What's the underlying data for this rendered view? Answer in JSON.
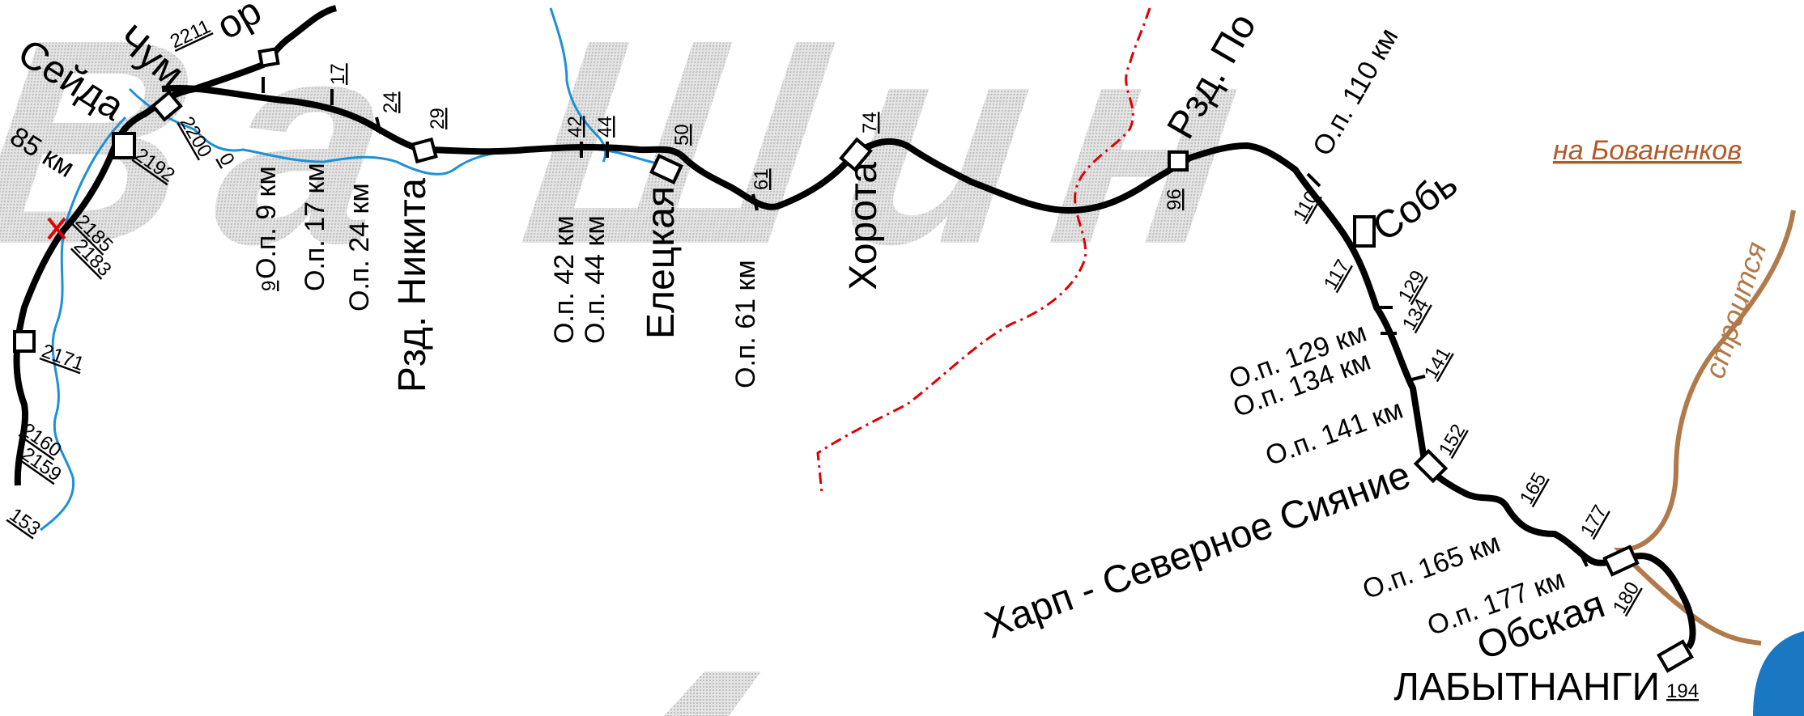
{
  "map": {
    "colors": {
      "rail": "#000000",
      "river": "#1e90d6",
      "border": "#e00000",
      "construction": "#b07a4a",
      "link": "#b05a2a",
      "background_text": "#c9c9c9",
      "water": "#1a78c2"
    },
    "background_glyphs": "Ва Шин",
    "stations": {
      "seida": "Сейда",
      "chum": "Чум",
      "chum_top": "ор",
      "nikita": "Рзд. Никита",
      "eletskaya": "Елецкая",
      "khorota": "Хорота",
      "rzd_96": "Рзд. По",
      "sob": "Собь",
      "kharp": "Харп - Северное Сияние",
      "obskaya": "Обская",
      "labytnangi": "ЛАБЫТНАНГИ"
    },
    "stops": {
      "op9": "О.п. 9 км",
      "op17": "О.п. 17 км",
      "op24": "О.п. 24 км",
      "op42": "О.п. 42 км",
      "op44": "О.п. 44 км",
      "op61": "О.п. 61 км",
      "op110": "О.п. 110 км",
      "op129": "О.п. 129 км",
      "op134": "О.п. 134 км",
      "op141": "О.п. 141 км",
      "op165": "О.п. 165 км",
      "op177": "О.п. 177 км",
      "km85": "85 км"
    },
    "km_marks": {
      "k2211": "2211",
      "k2200": "2200",
      "k0": "0",
      "k2192": "2192",
      "k2185": "2185",
      "k2183": "2183",
      "k2171": "2171",
      "k2160": "2160",
      "k2159": "2159",
      "k153": "153",
      "k9": "9",
      "k17": "17",
      "k24": "24",
      "k29": "29",
      "k42": "42",
      "k44": "44",
      "k50": "50",
      "k61": "61",
      "k74": "74",
      "k96": "96",
      "k110": "110",
      "k117": "117",
      "k129": "129",
      "k134": "134",
      "k141": "141",
      "k152": "152",
      "k165": "165",
      "k177": "177",
      "k180": "180",
      "k194": "194"
    },
    "annotations": {
      "bovanenkovo": "на Бованенков",
      "under_construction": "строится"
    }
  }
}
